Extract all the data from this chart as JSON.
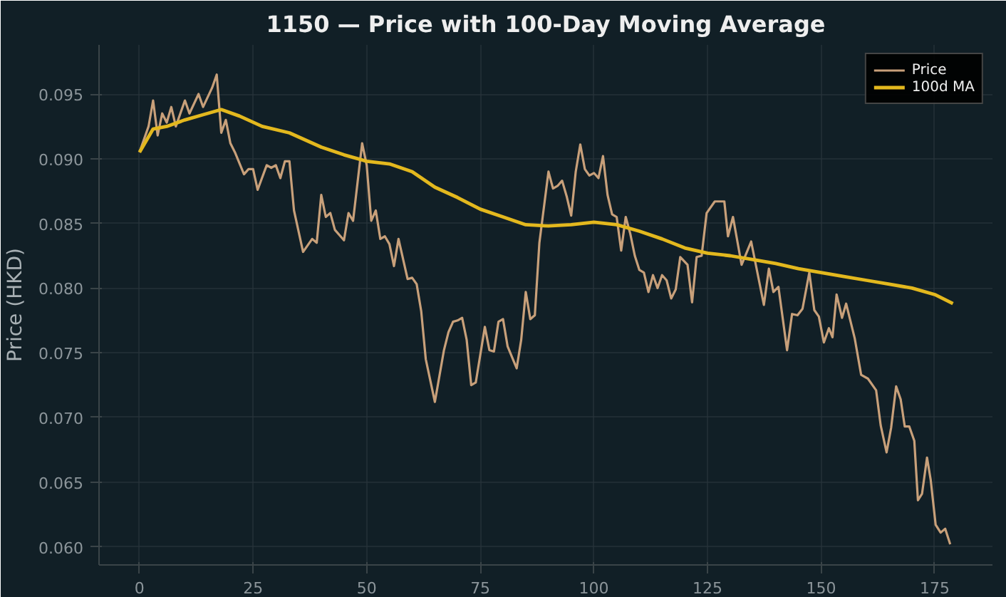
{
  "chart_data": {
    "type": "line",
    "title": "1150 — Price with 100-Day Moving Average",
    "ylabel": "Price (HKD)",
    "xlim": [
      -8.9,
      187.7
    ],
    "ylim": [
      0.0586,
      0.0988
    ],
    "xticks": [
      0,
      25,
      50,
      75,
      100,
      125,
      150,
      175
    ],
    "yticks": [
      {
        "value": 0.06,
        "label": "0.060"
      },
      {
        "value": 0.065,
        "label": "0.065"
      },
      {
        "value": 0.07,
        "label": "0.070"
      },
      {
        "value": 0.075,
        "label": "0.075"
      },
      {
        "value": 0.08,
        "label": "0.080"
      },
      {
        "value": 0.085,
        "label": "0.085"
      },
      {
        "value": 0.09,
        "label": "0.090"
      },
      {
        "value": 0.095,
        "label": "0.095"
      }
    ],
    "grid": true,
    "legend": "top right",
    "line_style": "solid",
    "series": [
      {
        "name": "Price",
        "color": "#c8a07a",
        "x": [
          0,
          2,
          3,
          4,
          5,
          6,
          7,
          8,
          10,
          11,
          13,
          14,
          16,
          17,
          18,
          19,
          20,
          21,
          23,
          24,
          25,
          26,
          28,
          29,
          30,
          31,
          32,
          33,
          34,
          36,
          38,
          39,
          40,
          41,
          42,
          43,
          45,
          46,
          47,
          49,
          50,
          51,
          52,
          53,
          54,
          55,
          56,
          57,
          59,
          60,
          61,
          62,
          63,
          65,
          67,
          68,
          69,
          70,
          71,
          72,
          73,
          74,
          76,
          77,
          78,
          79,
          80,
          81,
          83,
          84,
          85,
          86,
          87,
          88,
          90,
          91,
          92,
          93,
          94,
          95,
          96,
          97,
          98,
          99,
          100,
          101,
          102,
          103,
          104,
          105,
          106,
          107,
          108,
          109,
          110,
          111,
          112,
          113,
          114,
          115,
          116,
          117,
          118,
          119,
          120.6,
          121.6,
          122.6,
          123.7,
          124.8,
          126.6,
          128.7,
          129.5,
          130.6,
          132.5,
          134.6,
          137.4,
          138.5,
          139.5,
          140.6,
          142.5,
          143.6,
          144.8,
          145.9,
          147.4,
          148.5,
          149.5,
          150.6,
          151.7,
          152.5,
          153.4,
          154.6,
          155.5,
          157.4,
          158.8,
          160.3,
          162.1,
          163.1,
          164.4,
          165.4,
          166.5,
          167.5,
          168.4,
          169.4,
          170.5,
          171.3,
          172.2,
          173.3,
          174.1,
          175.2,
          176.3,
          177.3,
          178.4
        ],
        "values": [
          0.0905,
          0.0925,
          0.0945,
          0.0918,
          0.0935,
          0.0928,
          0.094,
          0.0925,
          0.0945,
          0.0935,
          0.095,
          0.094,
          0.0955,
          0.0965,
          0.092,
          0.093,
          0.0912,
          0.0905,
          0.0888,
          0.0892,
          0.0892,
          0.0876,
          0.0895,
          0.0893,
          0.0895,
          0.0885,
          0.0898,
          0.0898,
          0.086,
          0.0828,
          0.0838,
          0.0835,
          0.0872,
          0.0855,
          0.0858,
          0.0845,
          0.0837,
          0.0858,
          0.0852,
          0.0912,
          0.0895,
          0.0852,
          0.086,
          0.0838,
          0.084,
          0.0834,
          0.0817,
          0.0838,
          0.0807,
          0.0808,
          0.0803,
          0.0782,
          0.0745,
          0.0712,
          0.0752,
          0.0766,
          0.0774,
          0.0775,
          0.0777,
          0.076,
          0.0725,
          0.0727,
          0.077,
          0.0752,
          0.0751,
          0.0774,
          0.0776,
          0.0755,
          0.0738,
          0.076,
          0.0797,
          0.0776,
          0.0779,
          0.0835,
          0.089,
          0.0877,
          0.0879,
          0.0883,
          0.0871,
          0.0856,
          0.089,
          0.0911,
          0.0892,
          0.0887,
          0.0889,
          0.0885,
          0.0902,
          0.0872,
          0.0857,
          0.0855,
          0.0829,
          0.0855,
          0.0842,
          0.0825,
          0.0814,
          0.0812,
          0.0797,
          0.081,
          0.08,
          0.081,
          0.0806,
          0.0792,
          0.0799,
          0.0824,
          0.0818,
          0.0789,
          0.0824,
          0.0825,
          0.0858,
          0.0867,
          0.0867,
          0.084,
          0.0855,
          0.0818,
          0.0836,
          0.0787,
          0.0815,
          0.0797,
          0.0801,
          0.0752,
          0.078,
          0.0779,
          0.0784,
          0.0812,
          0.0783,
          0.0778,
          0.0758,
          0.0769,
          0.0762,
          0.0795,
          0.0777,
          0.0788,
          0.0761,
          0.0733,
          0.073,
          0.0721,
          0.0694,
          0.0673,
          0.0692,
          0.0724,
          0.0714,
          0.0693,
          0.0693,
          0.0682,
          0.0636,
          0.0641,
          0.0669,
          0.0652,
          0.0617,
          0.0611,
          0.0614,
          0.0602
        ]
      },
      {
        "name": "100d MA",
        "color": "#e3b81e",
        "x": [
          0,
          3,
          6,
          10,
          14,
          18,
          22,
          27,
          33,
          40,
          45,
          50,
          55,
          60,
          65,
          70,
          75,
          80,
          85,
          90,
          95,
          100,
          105,
          110,
          115,
          120,
          125,
          130,
          135,
          140,
          145,
          150,
          155,
          160,
          165,
          170,
          175,
          179
        ],
        "values": [
          0.0905,
          0.0923,
          0.0925,
          0.093,
          0.0934,
          0.0938,
          0.0933,
          0.0925,
          0.092,
          0.0909,
          0.0903,
          0.0898,
          0.0896,
          0.089,
          0.0878,
          0.087,
          0.0861,
          0.0855,
          0.0849,
          0.0848,
          0.0849,
          0.0851,
          0.0849,
          0.0844,
          0.0838,
          0.0831,
          0.0827,
          0.0825,
          0.0822,
          0.0819,
          0.0815,
          0.0812,
          0.0809,
          0.0806,
          0.0803,
          0.08,
          0.0795,
          0.0788
        ]
      }
    ]
  }
}
